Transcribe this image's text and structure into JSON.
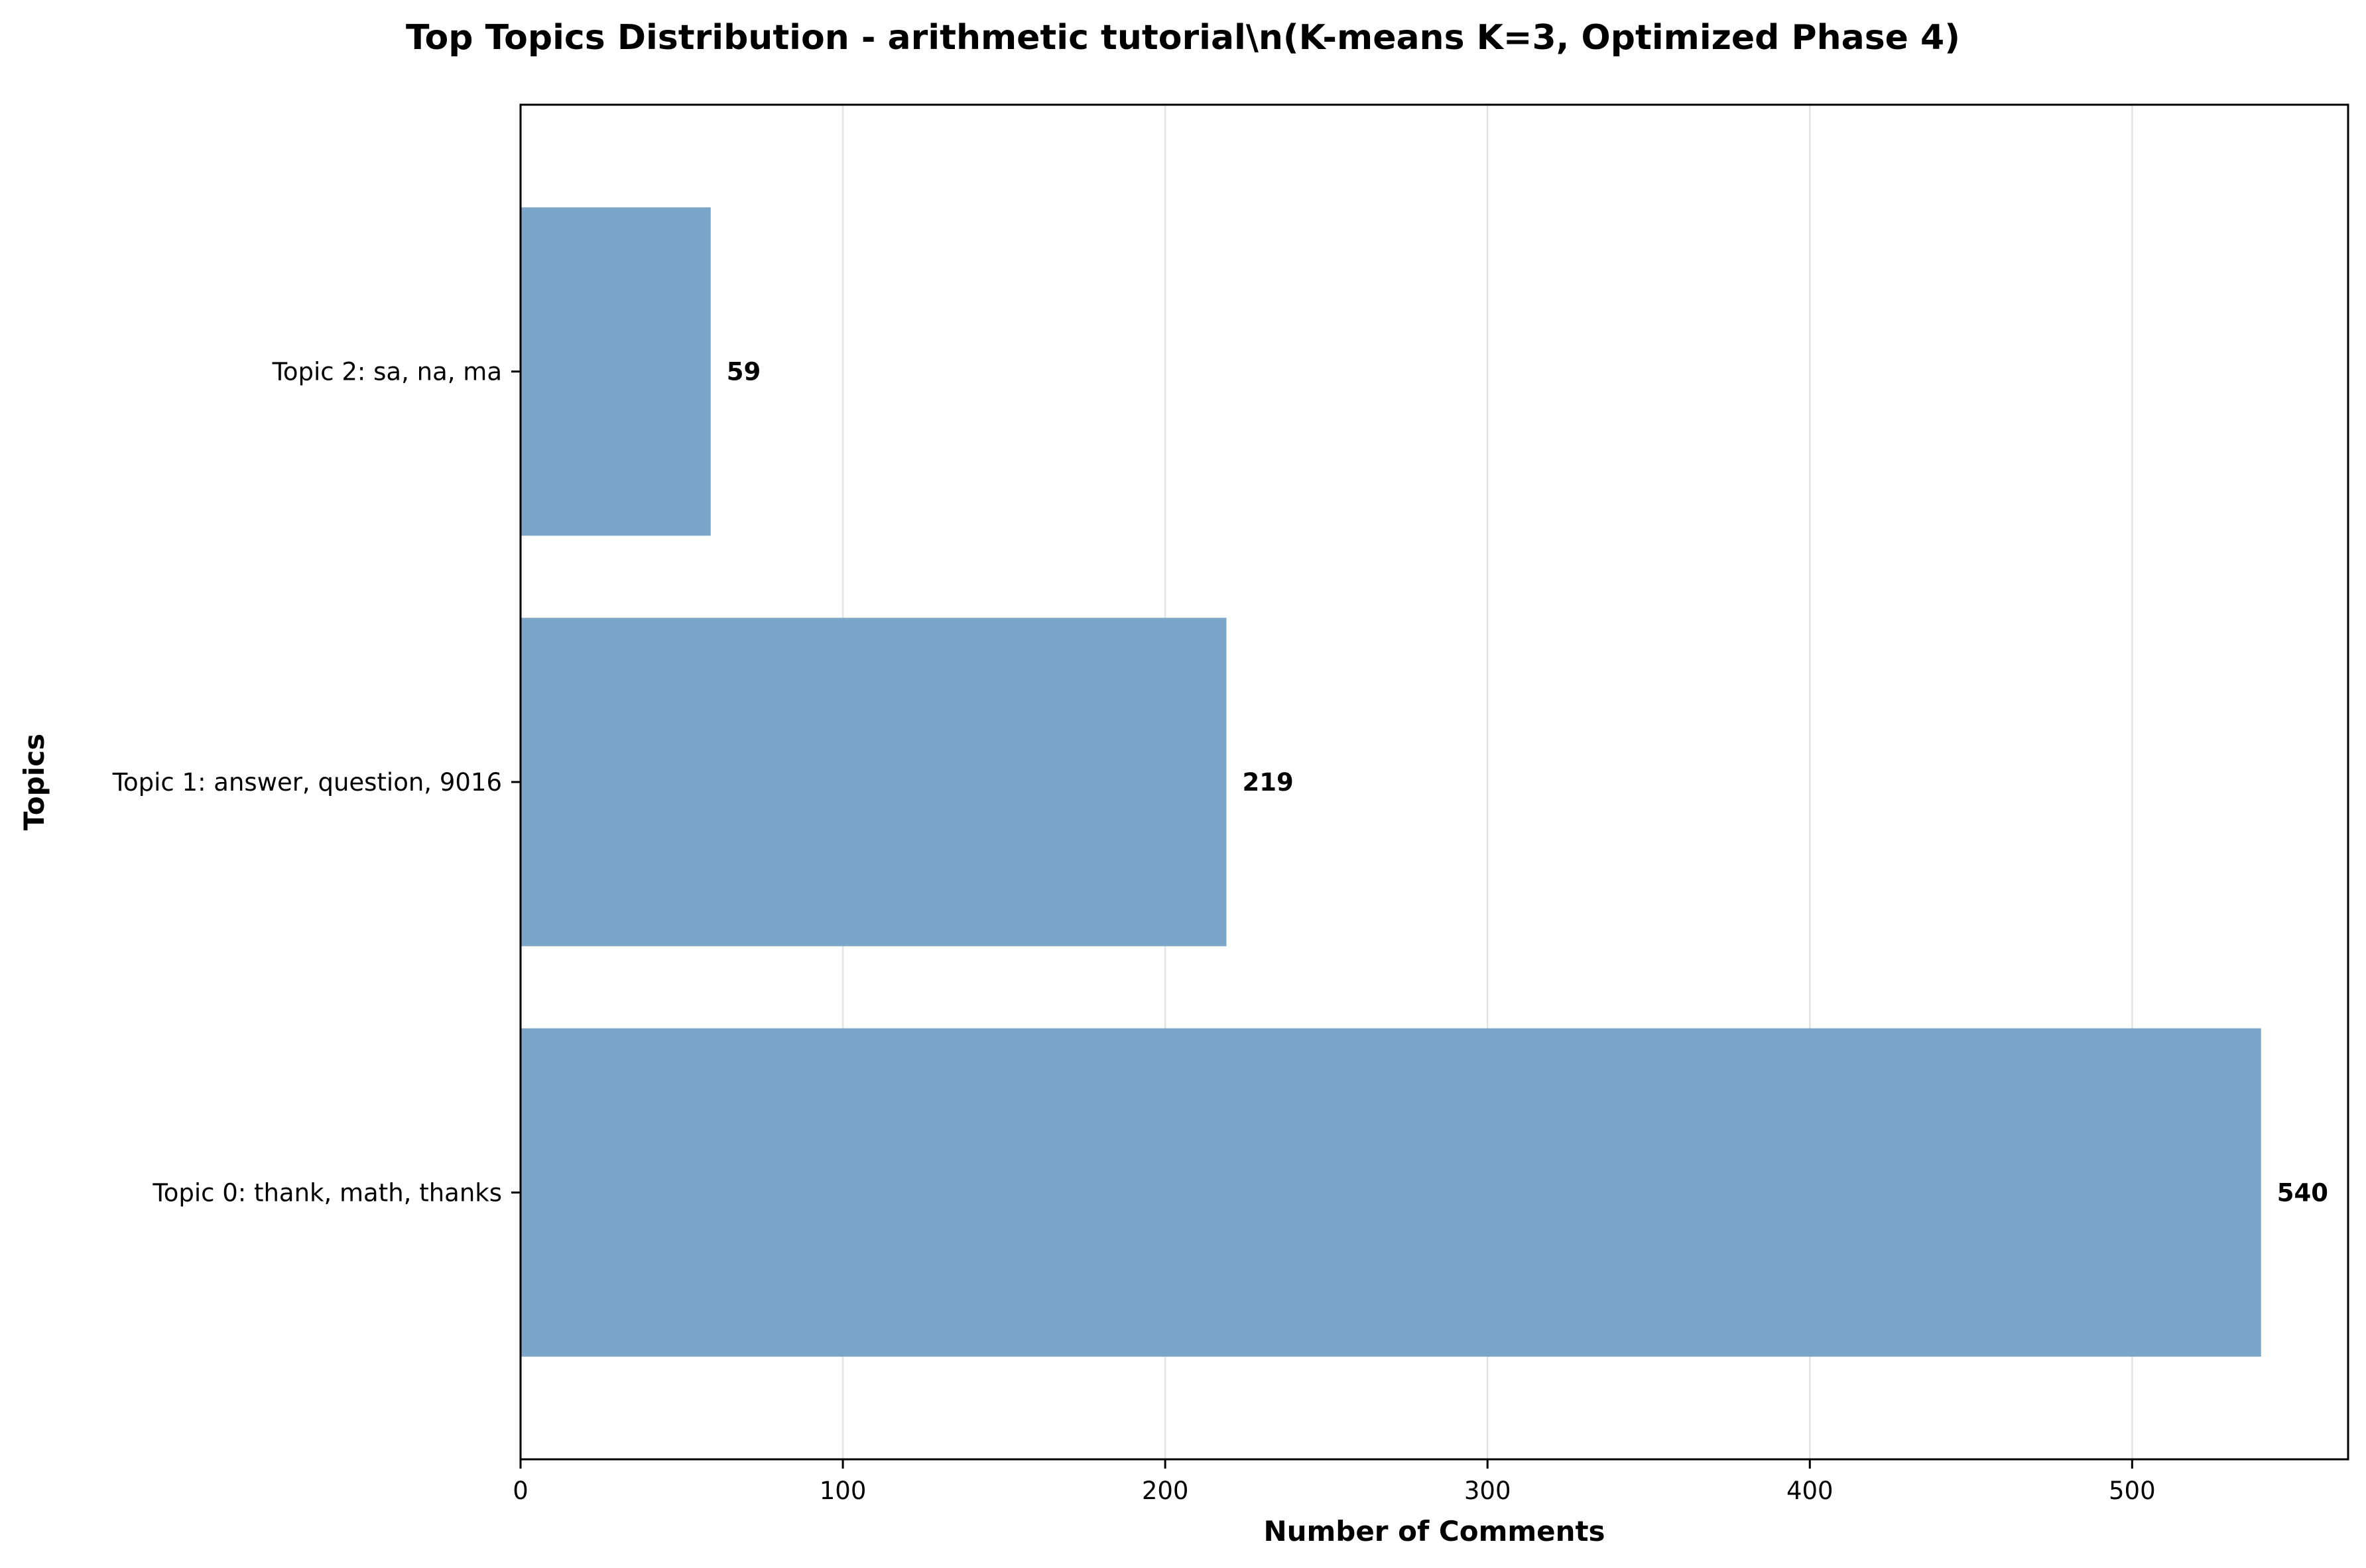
{
  "chart_data": {
    "type": "bar",
    "orientation": "horizontal",
    "title": "Top Topics Distribution - arithmetic tutorial\\n(K-means K=3, Optimized Phase 4)",
    "xlabel": "Number of Comments",
    "ylabel": "Topics",
    "categories": [
      "Topic 0: thank, math, thanks",
      "Topic 1: answer, question, 9016",
      "Topic 2: sa, na, ma"
    ],
    "values": [
      540,
      219,
      59
    ],
    "value_labels": [
      "540",
      "219",
      "59"
    ],
    "xlim": [
      0,
      567
    ],
    "x_ticks": [
      0,
      100,
      200,
      300,
      400,
      500
    ],
    "x_tick_labels": [
      "0",
      "100",
      "200",
      "300",
      "400",
      "500"
    ],
    "grid": "x",
    "bar_color": "#7BA5C9",
    "grid_color": "#e3e3e3"
  }
}
